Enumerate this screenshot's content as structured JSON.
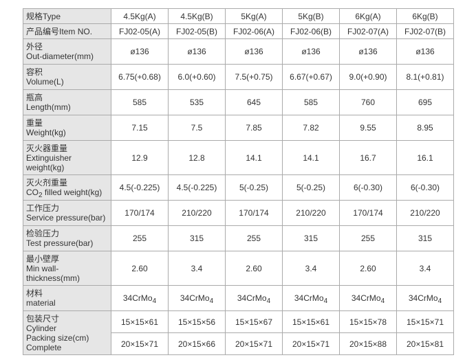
{
  "rows": [
    {
      "label_cn": "规格",
      "label_en": "Type",
      "values": [
        "4.5Kg(A)",
        "4.5Kg(B)",
        "5Kg(A)",
        "5Kg(B)",
        "6Kg(A)",
        "6Kg(B)"
      ]
    },
    {
      "label_cn": "产品编号",
      "label_en": "Item NO.",
      "values": [
        "FJ02-05(A)",
        "FJ02-05(B)",
        "FJ02-06(A)",
        "FJ02-06(B)",
        "FJ02-07(A)",
        "FJ02-07(B)"
      ]
    },
    {
      "label_cn": "外径",
      "label_en": "Out-diameter(mm)",
      "values": [
        "ø136",
        "ø136",
        "ø136",
        "ø136",
        "ø136",
        "ø136"
      ]
    },
    {
      "label_cn": "容积",
      "label_en": "Volume(L)",
      "values": [
        "6.75(+0.68)",
        "6.0(+0.60)",
        "7.5(+0.75)",
        "6.67(+0.67)",
        "9.0(+0.90)",
        "8.1(+0.81)"
      ]
    },
    {
      "label_cn": "瓶高",
      "label_en": "Length(mm)",
      "values": [
        "585",
        "535",
        "645",
        "585",
        "760",
        "695"
      ]
    },
    {
      "label_cn": "重量",
      "label_en": "Weight(kg)",
      "values": [
        "7.15",
        "7.5",
        "7.85",
        "7.82",
        "9.55",
        "8.95"
      ]
    },
    {
      "label_cn": "灭火器重量",
      "label_en": "Extinguisher weight(kg)",
      "values": [
        "12.9",
        "12.8",
        "14.1",
        "14.1",
        "16.7",
        "16.1"
      ]
    },
    {
      "label_cn": "灭火剂重量",
      "label_en_pre": "CO",
      "label_en_sub": "2",
      "label_en": " filled weight(kg)",
      "values": [
        "4.5(-0.225)",
        "4.5(-0.225)",
        "5(-0.25)",
        "5(-0.25)",
        "6(-0.30)",
        "6(-0.30)"
      ]
    },
    {
      "label_cn": "工作压力",
      "label_en": "Service pressure(bar)",
      "values": [
        "170/174",
        "210/220",
        "170/174",
        "210/220",
        "170/174",
        "210/220"
      ]
    },
    {
      "label_cn": "检验压力",
      "label_en": "Test pressure(bar)",
      "values": [
        "255",
        "315",
        "255",
        "315",
        "255",
        "315"
      ]
    },
    {
      "label_cn": "最小壁厚",
      "label_en": "Min wall-thickness(mm)",
      "values": [
        "2.60",
        "3.4",
        "2.60",
        "3.4",
        "2.60",
        "3.4"
      ]
    },
    {
      "label_cn": "材料",
      "label_en": "material",
      "value_main": "34CrMo",
      "value_sub": "4"
    }
  ],
  "packing": {
    "label_cn": "包装尺寸",
    "label_cylinder": "Cylinder",
    "label_en": "Packing size(cm)",
    "label_complete": "Complete",
    "cylinder": [
      "15×15×61",
      "15×15×56",
      "15×15×67",
      "15×15×61",
      "15×15×78",
      "15×15×71"
    ],
    "complete": [
      "20×15×71",
      "20×15×66",
      "20×15×71",
      "20×15×71",
      "20×15×88",
      "20×15×81"
    ]
  }
}
